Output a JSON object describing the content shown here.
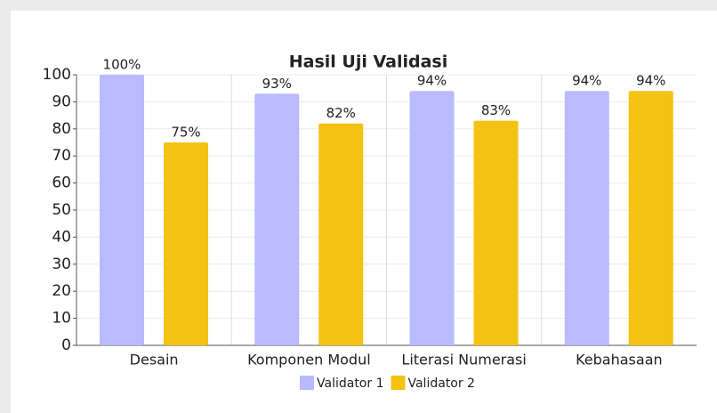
{
  "chart_data": {
    "type": "bar",
    "title": "Hasil Uji Validasi",
    "categories": [
      "Desain",
      "Komponen Modul",
      "Literasi Numerasi",
      "Kebahasaan"
    ],
    "series": [
      {
        "name": "Validator 1",
        "color": "#b9baff",
        "values": [
          100,
          93,
          94,
          94
        ],
        "value_labels": [
          "100%",
          "93%",
          "94%",
          "94%"
        ]
      },
      {
        "name": "Validator 2",
        "color": "#f4c212",
        "values": [
          75,
          82,
          83,
          94
        ],
        "value_labels": [
          "75%",
          "82%",
          "83%",
          "94%"
        ]
      }
    ],
    "ylim": [
      0,
      100
    ],
    "yticks": [
      0,
      10,
      20,
      30,
      40,
      50,
      60,
      70,
      80,
      90,
      100
    ],
    "grid": true,
    "legend": "bottom"
  }
}
